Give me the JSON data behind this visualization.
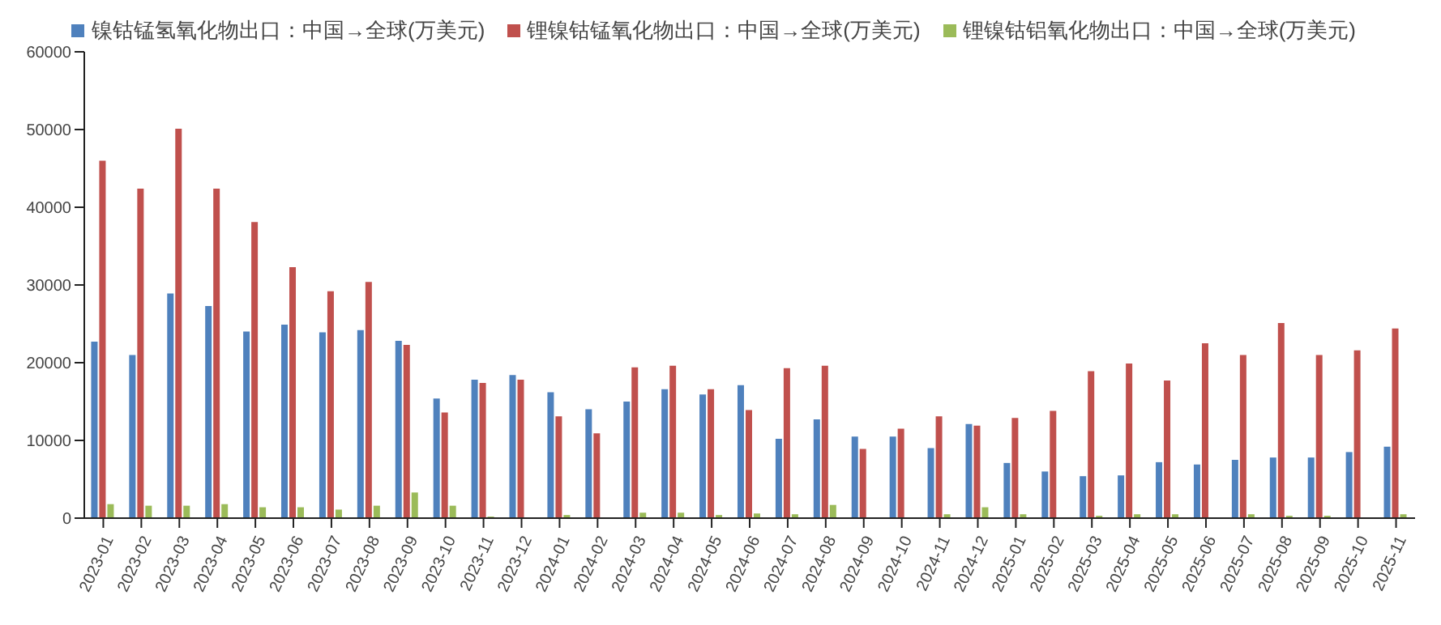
{
  "chart_data": {
    "type": "bar",
    "categories": [
      "2023-01",
      "2023-02",
      "2023-03",
      "2023-04",
      "2023-05",
      "2023-06",
      "2023-07",
      "2023-08",
      "2023-09",
      "2023-10",
      "2023-11",
      "2023-12",
      "2024-01",
      "2024-02",
      "2024-03",
      "2024-04",
      "2024-05",
      "2024-06",
      "2024-07",
      "2024-08",
      "2024-09",
      "2024-10",
      "2024-11",
      "2024-12",
      "2025-01",
      "2025-02",
      "2025-03",
      "2025-04",
      "2025-05",
      "2025-06",
      "2025-07",
      "2025-08",
      "2025-09",
      "2025-10",
      "2025-11"
    ],
    "series": [
      {
        "name": "镍钴锰氢氧化物出口：中国→全球(万美元)",
        "color": "#4f81bd",
        "values": [
          22700,
          21000,
          28900,
          27300,
          24000,
          24900,
          23900,
          24200,
          22800,
          15400,
          17800,
          18400,
          16200,
          14000,
          15000,
          16600,
          15900,
          17100,
          10200,
          12700,
          10500,
          10500,
          9000,
          12100,
          7100,
          6000,
          5400,
          5500,
          7200,
          6900,
          7500,
          7800,
          7800,
          8500,
          9200
        ]
      },
      {
        "name": "锂镍钴锰氧化物出口：中国→全球(万美元)",
        "color": "#c0504d",
        "values": [
          46000,
          42400,
          50100,
          42400,
          38100,
          32300,
          29200,
          30400,
          22300,
          13600,
          17400,
          17800,
          13100,
          10900,
          19400,
          19600,
          16600,
          13900,
          19300,
          19600,
          8900,
          11500,
          13100,
          11900,
          12900,
          13800,
          18900,
          19900,
          17700,
          22500,
          21000,
          25100,
          21000,
          21600,
          24400
        ]
      },
      {
        "name": "锂镍钴铝氧化物出口：中国→全球(万美元)",
        "color": "#9bbb59",
        "values": [
          1800,
          1600,
          1600,
          1800,
          1400,
          1400,
          1100,
          1600,
          3300,
          1600,
          200,
          100,
          400,
          100,
          700,
          700,
          400,
          600,
          500,
          1700,
          100,
          100,
          500,
          1400,
          500,
          100,
          300,
          500,
          500,
          100,
          500,
          300,
          300,
          100,
          500
        ]
      }
    ],
    "ylim": [
      0,
      60000
    ],
    "yticks": [
      0,
      10000,
      20000,
      30000,
      40000,
      50000,
      60000
    ],
    "legend": "top"
  }
}
